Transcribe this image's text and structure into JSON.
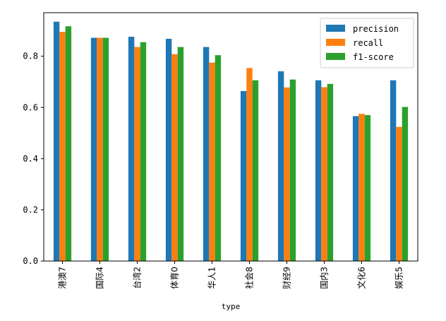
{
  "chart_data": {
    "type": "bar",
    "xlabel": "type",
    "ylabel": "",
    "ylim": [
      0,
      0.97
    ],
    "yticks": [
      "0.0",
      "0.2",
      "0.4",
      "0.6",
      "0.8"
    ],
    "ytick_values": [
      0.0,
      0.2,
      0.4,
      0.6,
      0.8
    ],
    "legend_position": "top-right",
    "categories": [
      "港澳7",
      "国际4",
      "台湾2",
      "体育0",
      "华人1",
      "社会8",
      "财经9",
      "国内3",
      "文化6",
      "娱乐5"
    ],
    "series": [
      {
        "name": "precision",
        "color": "#1f77b4",
        "values": [
          0.935,
          0.872,
          0.876,
          0.868,
          0.836,
          0.664,
          0.741,
          0.706,
          0.566,
          0.706
        ]
      },
      {
        "name": "recall",
        "color": "#ff7f0e",
        "values": [
          0.895,
          0.872,
          0.836,
          0.808,
          0.775,
          0.754,
          0.678,
          0.679,
          0.575,
          0.524
        ]
      },
      {
        "name": "f1-score",
        "color": "#2ca02c",
        "values": [
          0.917,
          0.872,
          0.855,
          0.836,
          0.804,
          0.706,
          0.709,
          0.692,
          0.57,
          0.602
        ]
      }
    ]
  }
}
